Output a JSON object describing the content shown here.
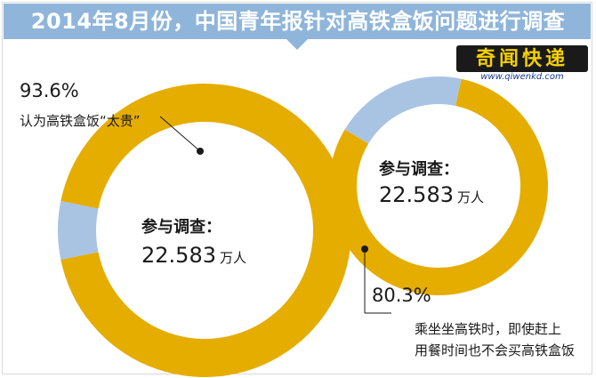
{
  "title": "2014年8月份，中国青年报针对高铁盒饭问题进行调查",
  "logo": {
    "name": "奇闻快递",
    "url": "www.qiwenkd.com"
  },
  "colors": {
    "main": "#e5ad00",
    "rest": "#a9c3e3",
    "title_bg": "#8fb5da"
  },
  "chart_data": [
    {
      "type": "pie",
      "donut": true,
      "value_percent": 93.6,
      "percent_label": "93.6%",
      "note": "认为高铁盒饭“太贵”",
      "center_label": "参与调查：",
      "center_value": "22.583",
      "center_unit": "万人"
    },
    {
      "type": "pie",
      "donut": true,
      "value_percent": 80.3,
      "percent_label": "80.3%",
      "note_lines": [
        "乘坐坐高铁时，即使赶上",
        "用餐时间也不会买高铁盒饭"
      ],
      "center_label": "参与调查：",
      "center_value": "22.583",
      "center_unit": "万人"
    }
  ]
}
